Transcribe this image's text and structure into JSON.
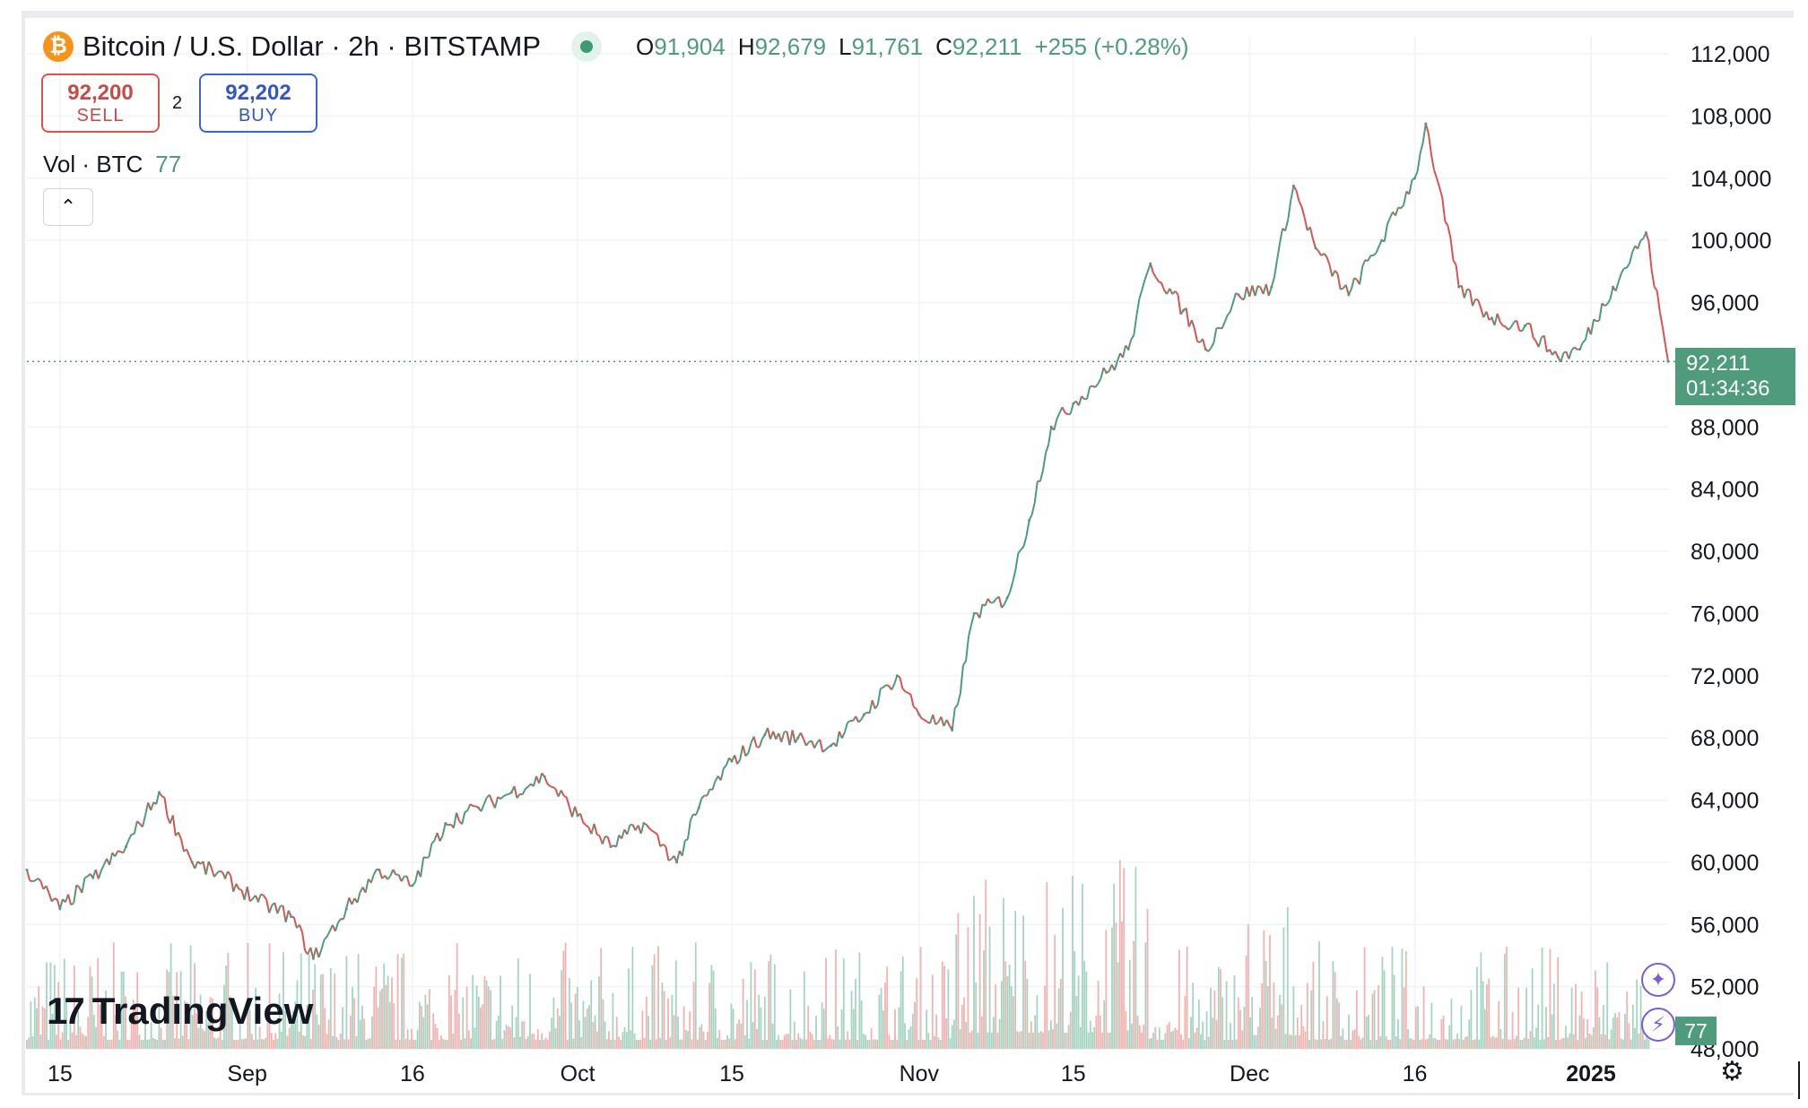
{
  "header": {
    "coin_glyph": "₿",
    "title": "Bitcoin / U.S. Dollar · 2h · BITSTAMP",
    "ohlc": {
      "o_label": "O",
      "o": "91,904",
      "h_label": "H",
      "h": "92,679",
      "l_label": "L",
      "l": "91,761",
      "c_label": "C",
      "c": "92,211",
      "change": "+255 (+0.28%)"
    }
  },
  "trade": {
    "sell_price": "92,200",
    "sell_label": "SELL",
    "spread": "2",
    "buy_price": "92,202",
    "buy_label": "BUY"
  },
  "volume": {
    "label": "Vol · BTC",
    "value": "77"
  },
  "branding": {
    "logo_mark": "17",
    "logo_text": "TradingView"
  },
  "price_label": {
    "price": "92,211",
    "countdown": "01:34:36"
  },
  "icons": {
    "collapse": "chevron-up-icon",
    "ai": "sparkle-icon",
    "flash": "lightning-icon",
    "settings": "gear-icon"
  },
  "colors": {
    "up": "#4e9c7c",
    "down": "#d9534f",
    "vol_up": "#a6d4c2",
    "vol_down": "#f1b3b1",
    "grid": "#f0f3f7"
  },
  "chart_data": {
    "type": "line",
    "title": "Bitcoin / U.S. Dollar · 2h · BITSTAMP",
    "y_ticks": [
      "112,000",
      "108,000",
      "104,000",
      "100,000",
      "96,000",
      "92,000",
      "88,000",
      "84,000",
      "80,000",
      "76,000",
      "72,000",
      "68,000",
      "64,000",
      "60,000",
      "56,000",
      "52,000",
      "48,000"
    ],
    "ylim": [
      48000,
      112000
    ],
    "x_ticks": [
      "15",
      "Sep",
      "16",
      "Oct",
      "15",
      "Nov",
      "15",
      "Dec",
      "16",
      "2025"
    ],
    "x_tick_bold": "2025",
    "xlim": [
      "2024-08-12",
      "2025-01-08"
    ],
    "grid": true,
    "last_price": 92211,
    "series": [
      {
        "x": [
          "2024-08-12",
          "2024-08-15",
          "2024-08-18",
          "2024-08-21",
          "2024-08-24",
          "2024-08-27",
          "2024-08-30",
          "2024-09-02",
          "2024-09-05",
          "2024-09-07",
          "2024-09-10",
          "2024-09-13",
          "2024-09-16",
          "2024-09-19",
          "2024-09-22",
          "2024-09-25",
          "2024-09-28",
          "2024-10-01",
          "2024-10-04",
          "2024-10-07",
          "2024-10-10",
          "2024-10-12",
          "2024-10-15",
          "2024-10-18",
          "2024-10-21",
          "2024-10-24",
          "2024-10-27",
          "2024-10-30",
          "2024-11-01",
          "2024-11-04",
          "2024-11-06",
          "2024-11-09",
          "2024-11-11",
          "2024-11-13",
          "2024-11-15",
          "2024-11-18",
          "2024-11-20",
          "2024-11-22",
          "2024-11-25",
          "2024-11-27",
          "2024-11-30",
          "2024-12-03",
          "2024-12-05",
          "2024-12-07",
          "2024-12-10",
          "2024-12-13",
          "2024-12-16",
          "2024-12-17",
          "2024-12-20",
          "2024-12-23",
          "2024-12-26",
          "2024-12-29",
          "2024-12-31",
          "2025-01-03",
          "2025-01-06",
          "2025-01-08"
        ],
        "y": [
          59500,
          57000,
          59000,
          61000,
          64500,
          60000,
          59000,
          57500,
          56500,
          53800,
          57000,
          59500,
          58500,
          62500,
          63500,
          64500,
          65500,
          63000,
          61000,
          62500,
          60000,
          63500,
          66500,
          68200,
          68000,
          67500,
          69500,
          72000,
          69500,
          68500,
          76000,
          77000,
          82000,
          88000,
          89500,
          91500,
          93000,
          98500,
          95500,
          93000,
          96500,
          97000,
          103500,
          99500,
          96500,
          100000,
          104000,
          107500,
          97000,
          95000,
          94500,
          92500,
          93000,
          97000,
          100500,
          92211
        ]
      }
    ]
  }
}
